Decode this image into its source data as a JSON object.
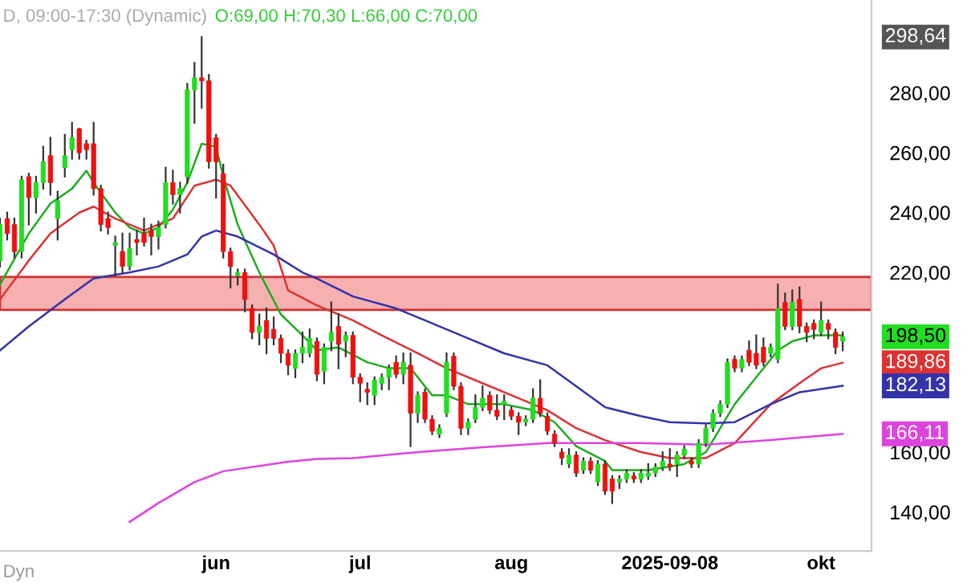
{
  "chart_data": {
    "type": "candlestick",
    "title": "D, 09:00-17:30 (Dynamic)",
    "subtitle": "O:69,00 H:70,30 L:66,00 C:70,00",
    "categories": [
      null,
      null,
      null,
      null,
      null,
      null,
      null,
      null,
      null,
      null,
      null,
      null,
      null,
      null,
      null,
      null,
      null,
      null,
      null,
      null,
      null,
      null,
      null,
      null,
      null,
      null,
      null,
      null,
      null,
      null,
      "jun",
      null,
      null,
      null,
      null,
      null,
      null,
      null,
      null,
      null,
      null,
      null,
      null,
      null,
      null,
      null,
      null,
      null,
      null,
      null,
      "jul",
      null,
      null,
      null,
      null,
      null,
      null,
      null,
      null,
      null,
      null,
      null,
      null,
      null,
      null,
      null,
      null,
      null,
      null,
      null,
      null,
      "aug",
      null,
      null,
      null,
      null,
      null,
      null,
      null,
      null,
      null,
      null,
      null,
      null,
      null,
      null,
      null,
      null,
      null,
      null,
      null,
      null,
      null,
      "2025-09-08",
      null,
      null,
      null,
      null,
      null,
      null,
      null,
      null,
      null,
      null,
      null,
      null,
      null,
      null,
      null,
      null,
      null,
      null,
      null,
      null,
      "okt",
      null,
      null,
      null
    ],
    "ohlc": [
      [
        224,
        238,
        222,
        236
      ],
      [
        238,
        240,
        231,
        233
      ],
      [
        236,
        238,
        225,
        227
      ],
      [
        227,
        252,
        225,
        251
      ],
      [
        252,
        253,
        236,
        245
      ],
      [
        245,
        252,
        240,
        250
      ],
      [
        250,
        262,
        248,
        257
      ],
      [
        259,
        265,
        246,
        250
      ],
      [
        238,
        247,
        231,
        244
      ],
      [
        255,
        266,
        252,
        259
      ],
      [
        261,
        270,
        258,
        265
      ],
      [
        268,
        268,
        258,
        260
      ],
      [
        263,
        264,
        258,
        261
      ],
      [
        263,
        270,
        246,
        248
      ],
      [
        248,
        249,
        234,
        236
      ],
      [
        238,
        240,
        233,
        235
      ],
      [
        229,
        232,
        219,
        230
      ],
      [
        227,
        233,
        220,
        222
      ],
      [
        222,
        233,
        221,
        228
      ],
      [
        231,
        234,
        226,
        230
      ],
      [
        233,
        238,
        229,
        230
      ],
      [
        234,
        236,
        226,
        232
      ],
      [
        232,
        237,
        228,
        235
      ],
      [
        236,
        255,
        235,
        250
      ],
      [
        250,
        254,
        243,
        246
      ],
      [
        246,
        250,
        240,
        248
      ],
      [
        252,
        283,
        250,
        281
      ],
      [
        281,
        290,
        270,
        285
      ],
      [
        285,
        298.64,
        275,
        284
      ],
      [
        284,
        286,
        255,
        257
      ],
      [
        265,
        266,
        245,
        257
      ],
      [
        253,
        256,
        225,
        227
      ],
      [
        227,
        228,
        215,
        222
      ],
      [
        219,
        221,
        216,
        220
      ],
      [
        220,
        221,
        207,
        211
      ],
      [
        208,
        209,
        198,
        200
      ],
      [
        200,
        206,
        196,
        202
      ],
      [
        204,
        208,
        193,
        198
      ],
      [
        201,
        205,
        196,
        198
      ],
      [
        198,
        199,
        190,
        193
      ],
      [
        193,
        194,
        186,
        189
      ],
      [
        188,
        194,
        185,
        193
      ],
      [
        193,
        200,
        190,
        195
      ],
      [
        193,
        201,
        192,
        198
      ],
      [
        197,
        198,
        184,
        186
      ],
      [
        187,
        196,
        183,
        195
      ],
      [
        197,
        210,
        194,
        200
      ],
      [
        202,
        206,
        188,
        196
      ],
      [
        197,
        200,
        192,
        199
      ],
      [
        199,
        200,
        183,
        185
      ],
      [
        185,
        186,
        177,
        183
      ],
      [
        181,
        183,
        176,
        180
      ],
      [
        179,
        185,
        176,
        184
      ],
      [
        183,
        186,
        181,
        185
      ],
      [
        185,
        189,
        181,
        188
      ],
      [
        190,
        192,
        185,
        186
      ],
      [
        186,
        193,
        183,
        190
      ],
      [
        189,
        193,
        162,
        173
      ],
      [
        173,
        180,
        170,
        179
      ],
      [
        180,
        181,
        170,
        171
      ],
      [
        171,
        172,
        166,
        167
      ],
      [
        166,
        169,
        165,
        168
      ],
      [
        173,
        193,
        172,
        190
      ],
      [
        192,
        193,
        181,
        182
      ],
      [
        182,
        183,
        166,
        168
      ],
      [
        168,
        171,
        166,
        170
      ],
      [
        171,
        179,
        170,
        175
      ],
      [
        175,
        182,
        174,
        178
      ],
      [
        179,
        180,
        173,
        174
      ],
      [
        174,
        179,
        171,
        172
      ],
      [
        176,
        179,
        171,
        177
      ],
      [
        174,
        175,
        171,
        172
      ],
      [
        172,
        173,
        166,
        170
      ],
      [
        170,
        172,
        169,
        171
      ],
      [
        171,
        181,
        170,
        178
      ],
      [
        178,
        184,
        172,
        173
      ],
      [
        172,
        173,
        166,
        167
      ],
      [
        166,
        167,
        162,
        163
      ],
      [
        160,
        161,
        156,
        158
      ],
      [
        156,
        161,
        155,
        159
      ],
      [
        159,
        160,
        152,
        153
      ],
      [
        154,
        158,
        153,
        157
      ],
      [
        157,
        158,
        153,
        154
      ],
      [
        150,
        157,
        149,
        156
      ],
      [
        156,
        157,
        146,
        147
      ],
      [
        151,
        152,
        143,
        147
      ],
      [
        150,
        152,
        148,
        151
      ],
      [
        151,
        154,
        150,
        153
      ],
      [
        152,
        153,
        150,
        151
      ],
      [
        151,
        154,
        150,
        153
      ],
      [
        152,
        156,
        151,
        153
      ],
      [
        153,
        156,
        152,
        155
      ],
      [
        155,
        160,
        154,
        157
      ],
      [
        156,
        161,
        154,
        155
      ],
      [
        156,
        160,
        152,
        159
      ],
      [
        159,
        162,
        158,
        161
      ],
      [
        157,
        158,
        155,
        156
      ],
      [
        156,
        164,
        155,
        163
      ],
      [
        163,
        169,
        162,
        168
      ],
      [
        168,
        174,
        167,
        173
      ],
      [
        173,
        177,
        172,
        176
      ],
      [
        176,
        191,
        175,
        190
      ],
      [
        191,
        192,
        187,
        188
      ],
      [
        188,
        192,
        187,
        191
      ],
      [
        194,
        197,
        189,
        190
      ],
      [
        193,
        199,
        188,
        189
      ],
      [
        195,
        198,
        189,
        190
      ],
      [
        193,
        196,
        192,
        195
      ],
      [
        191,
        216,
        190,
        208
      ],
      [
        210,
        213,
        201,
        202
      ],
      [
        202,
        214,
        201,
        210
      ],
      [
        211,
        215,
        200,
        202
      ],
      [
        202,
        203,
        197,
        200
      ],
      [
        203,
        204,
        198,
        201
      ],
      [
        200,
        210,
        199,
        204
      ],
      [
        203,
        204,
        198,
        201
      ],
      [
        200,
        201,
        193,
        195
      ],
      [
        197,
        200,
        194,
        198.5
      ]
    ],
    "series": [
      {
        "type": "line",
        "color": "#22aa22",
        "values": [
          216,
          null,
          null,
          null,
          233,
          null,
          null,
          243,
          null,
          null,
          248,
          null,
          254,
          250,
          null,
          null,
          240,
          null,
          235,
          null,
          233,
          null,
          235,
          null,
          241,
          null,
          250,
          null,
          263,
          null,
          262,
          252,
          null,
          236,
          null,
          null,
          220,
          null,
          null,
          206,
          null,
          null,
          199,
          null,
          194,
          null,
          null,
          195,
          null,
          null,
          null,
          190,
          null,
          null,
          188,
          null,
          null,
          188,
          null,
          null,
          179,
          null,
          179,
          null,
          null,
          176,
          null,
          null,
          null,
          null,
          176,
          null,
          null,
          null,
          174,
          null,
          null,
          170,
          null,
          null,
          162,
          null,
          null,
          null,
          157,
          154,
          null,
          null,
          null,
          null,
          154,
          null,
          null,
          null,
          null,
          156,
          null,
          null,
          160,
          null,
          null,
          null,
          176,
          null,
          null,
          185,
          null,
          null,
          194,
          null,
          197,
          null,
          null,
          199,
          null,
          null,
          null,
          199
        ]
      },
      {
        "type": "line",
        "color": "#dd3333",
        "values": [
          211,
          null,
          null,
          null,
          224,
          null,
          null,
          233,
          null,
          null,
          null,
          240,
          null,
          242,
          null,
          null,
          238,
          null,
          null,
          null,
          234,
          null,
          null,
          null,
          238,
          null,
          null,
          249,
          null,
          null,
          251,
          null,
          249,
          null,
          null,
          null,
          236,
          null,
          229,
          null,
          214,
          null,
          null,
          null,
          209,
          null,
          null,
          null,
          null,
          204,
          null,
          null,
          null,
          199,
          null,
          null,
          null,
          null,
          193,
          null,
          null,
          null,
          188,
          null,
          null,
          null,
          null,
          183,
          null,
          null,
          null,
          179,
          null,
          null,
          null,
          null,
          174,
          null,
          null,
          null,
          168,
          null,
          null,
          null,
          164,
          null,
          null,
          null,
          null,
          160,
          null,
          null,
          null,
          158,
          null,
          null,
          null,
          null,
          158,
          null,
          null,
          null,
          163,
          null,
          null,
          null,
          null,
          176,
          null,
          null,
          null,
          183,
          null,
          null,
          188,
          null,
          null,
          189.86
        ]
      },
      {
        "type": "line",
        "color": "#3333aa",
        "values": [
          194,
          null,
          null,
          null,
          202,
          null,
          null,
          null,
          null,
          211,
          null,
          null,
          null,
          218,
          null,
          null,
          null,
          null,
          220,
          null,
          null,
          null,
          222,
          null,
          null,
          null,
          226,
          null,
          232,
          null,
          234,
          null,
          null,
          232,
          null,
          null,
          null,
          null,
          226,
          null,
          null,
          null,
          220,
          null,
          218,
          null,
          null,
          null,
          null,
          212,
          null,
          null,
          null,
          null,
          null,
          208,
          null,
          null,
          null,
          204,
          null,
          null,
          null,
          null,
          199,
          null,
          null,
          null,
          null,
          null,
          193,
          null,
          null,
          null,
          null,
          null,
          189,
          null,
          null,
          null,
          182,
          null,
          null,
          null,
          175,
          null,
          null,
          null,
          null,
          172,
          null,
          null,
          null,
          170,
          null,
          null,
          null,
          null,
          169.6,
          null,
          null,
          null,
          170,
          null,
          null,
          null,
          null,
          176,
          null,
          null,
          null,
          180,
          null,
          null,
          null,
          null,
          null,
          182.13
        ]
      },
      {
        "type": "line",
        "color": "#dd44dd",
        "values": [
          null,
          null,
          null,
          null,
          null,
          null,
          null,
          null,
          null,
          null,
          null,
          null,
          null,
          null,
          null,
          null,
          null,
          null,
          136.7,
          null,
          null,
          null,
          143,
          null,
          null,
          null,
          null,
          150,
          null,
          null,
          null,
          153.6,
          null,
          null,
          null,
          null,
          155.4,
          null,
          null,
          null,
          156.8,
          null,
          null,
          null,
          157.7,
          null,
          null,
          null,
          null,
          158,
          null,
          null,
          null,
          null,
          null,
          null,
          null,
          null,
          160,
          null,
          null,
          null,
          null,
          null,
          null,
          null,
          null,
          161.6,
          null,
          null,
          null,
          null,
          null,
          null,
          null,
          null,
          163,
          null,
          null,
          null,
          null,
          null,
          null,
          null,
          null,
          null,
          null,
          null,
          null,
          163,
          null,
          null,
          null,
          null,
          null,
          null,
          null,
          null,
          162.5,
          null,
          null,
          null,
          null,
          null,
          null,
          null,
          null,
          164,
          null,
          null,
          null,
          null,
          null,
          null,
          null,
          null,
          null,
          166.11
        ]
      }
    ],
    "bands": [
      {
        "axis": "y",
        "from": 207.5,
        "to": 218.5,
        "color": "#f7b0b0"
      }
    ],
    "annotations": [
      "298,64",
      "198,50",
      "189,86",
      "182,13",
      "166,11",
      "Dyn"
    ],
    "ylim": [
      127,
      311
    ],
    "yticks": [
      {
        "value": 140,
        "label": "140,00"
      },
      {
        "value": 160,
        "label": "160,00"
      },
      {
        "value": 220,
        "label": "220,00"
      },
      {
        "value": 240,
        "label": "240,00"
      },
      {
        "value": 260,
        "label": "260,00"
      },
      {
        "value": 280,
        "label": "280,00"
      }
    ],
    "grid": false,
    "legend": false
  }
}
